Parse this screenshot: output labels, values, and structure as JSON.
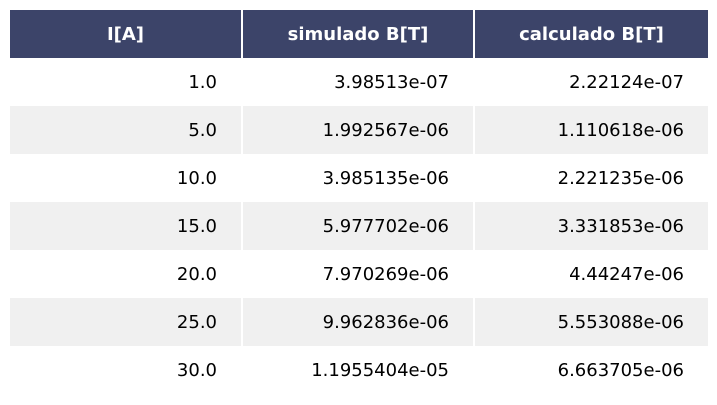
{
  "colors": {
    "header_bg": "#3c4469",
    "header_text": "#ffffff",
    "row_alt_bg": "#f0f0f0",
    "row_bg": "#ffffff"
  },
  "chart_data": {
    "type": "table",
    "columns": [
      "I[A]",
      "simulado B[T]",
      "calculado B[T]"
    ],
    "rows": [
      [
        "1.0",
        "3.98513e-07",
        "2.22124e-07"
      ],
      [
        "5.0",
        "1.992567e-06",
        "1.110618e-06"
      ],
      [
        "10.0",
        "3.985135e-06",
        "2.221235e-06"
      ],
      [
        "15.0",
        "5.977702e-06",
        "3.331853e-06"
      ],
      [
        "20.0",
        "7.970269e-06",
        "4.44247e-06"
      ],
      [
        "25.0",
        "9.962836e-06",
        "5.553088e-06"
      ],
      [
        "30.0",
        "1.1955404e-05",
        "6.663705e-06"
      ]
    ]
  }
}
